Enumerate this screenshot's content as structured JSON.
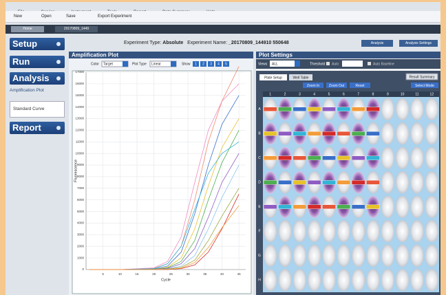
{
  "menu": [
    "File",
    "Service",
    "Instrument",
    "Tools",
    "Report",
    "Data Summary",
    "Help"
  ],
  "toolbar": [
    "New",
    "Open",
    "Save",
    "Export Experiment"
  ],
  "tabs": [
    "Home",
    "20170809_1449"
  ],
  "sidebar": {
    "setup": "Setup",
    "run": "Run",
    "analysis": "Analysis",
    "amplification_plot": "Amplification Plot",
    "standard_curve": "Standard Curve",
    "report": "Report"
  },
  "header": {
    "type_label": "Experiment Type:",
    "type_value": "Absolute",
    "name_label": "Experiment Name:",
    "name_value": "_20170809_144910 550648",
    "buttons": [
      "Analysis",
      "Analysis Settings"
    ]
  },
  "amplification_plot": {
    "title": "Amplification Plot",
    "color_label": "Color",
    "color_value": "Target",
    "plot_type_label": "Plot Type",
    "plot_type_value": "Linear",
    "show_label": "Show",
    "show_buttons": [
      "1",
      "2",
      "3",
      "4",
      "5"
    ]
  },
  "chart_data": {
    "type": "line",
    "x_label": "Cycle",
    "y_label": "Fluorescence",
    "x": [
      1,
      10,
      20,
      24,
      28,
      32,
      36,
      40,
      45
    ],
    "xlim": [
      0,
      47
    ],
    "xticks": [
      5,
      10,
      15,
      20,
      25,
      30,
      35,
      40,
      45
    ],
    "ylim": [
      0,
      17000
    ],
    "yticks": [
      0,
      1000,
      2000,
      3000,
      4000,
      5000,
      6000,
      7000,
      8000,
      9000,
      10000,
      11000,
      12000,
      13000,
      14000,
      15000,
      16000,
      17000
    ],
    "grid": true,
    "series": [
      {
        "color": "#f08a6c",
        "values": [
          0,
          0,
          100,
          500,
          2000,
          6000,
          11000,
          14500,
          17500
        ]
      },
      {
        "color": "#f08cc0",
        "values": [
          0,
          0,
          150,
          700,
          2800,
          7500,
          12000,
          14500,
          16000
        ]
      },
      {
        "color": "#3a6fc8",
        "values": [
          0,
          0,
          50,
          300,
          1500,
          4800,
          9000,
          12500,
          15000
        ]
      },
      {
        "color": "#e8c22a",
        "values": [
          0,
          0,
          30,
          200,
          1000,
          3500,
          7200,
          10500,
          13000
        ]
      },
      {
        "color": "#4caf50",
        "values": [
          0,
          0,
          20,
          150,
          700,
          2500,
          6000,
          9200,
          12000
        ]
      },
      {
        "color": "#33b5d6",
        "values": [
          0,
          0,
          80,
          500,
          2000,
          5200,
          8300,
          10000,
          11000
        ]
      },
      {
        "color": "#8e5cc2",
        "values": [
          0,
          0,
          10,
          100,
          500,
          1800,
          4500,
          7500,
          10000
        ]
      },
      {
        "color": "#8cc4ee",
        "values": [
          0,
          0,
          0,
          50,
          300,
          1200,
          3500,
          6200,
          9000
        ]
      },
      {
        "color": "#9aa83a",
        "values": [
          0,
          0,
          0,
          40,
          200,
          800,
          2500,
          4600,
          7000
        ]
      },
      {
        "color": "#d42a2a",
        "values": [
          0,
          0,
          0,
          10,
          80,
          400,
          1500,
          3500,
          6500
        ]
      },
      {
        "color": "#f39c3a",
        "values": [
          0,
          0,
          0,
          20,
          120,
          600,
          1900,
          3600,
          5500
        ]
      }
    ]
  },
  "plot_settings": {
    "title": "Plot Settings",
    "views_label": "Views",
    "views_value": "ALL",
    "threshold_label": "Threshold",
    "auto": "Auto",
    "auto_baseline": "Auto Baseline",
    "tabs": [
      "Plate Setup",
      "Well Table"
    ],
    "result_summary": "Result Summary",
    "buttons": [
      "Zoom In",
      "Zoom Out",
      "Reset"
    ],
    "select_mode": "Select Mode",
    "columns": [
      "1",
      "2",
      "3",
      "4",
      "5",
      "6",
      "7",
      "8",
      "9",
      "10",
      "11",
      "12"
    ],
    "rows": [
      "A",
      "B",
      "C",
      "D",
      "E",
      "F",
      "G",
      "H"
    ]
  }
}
